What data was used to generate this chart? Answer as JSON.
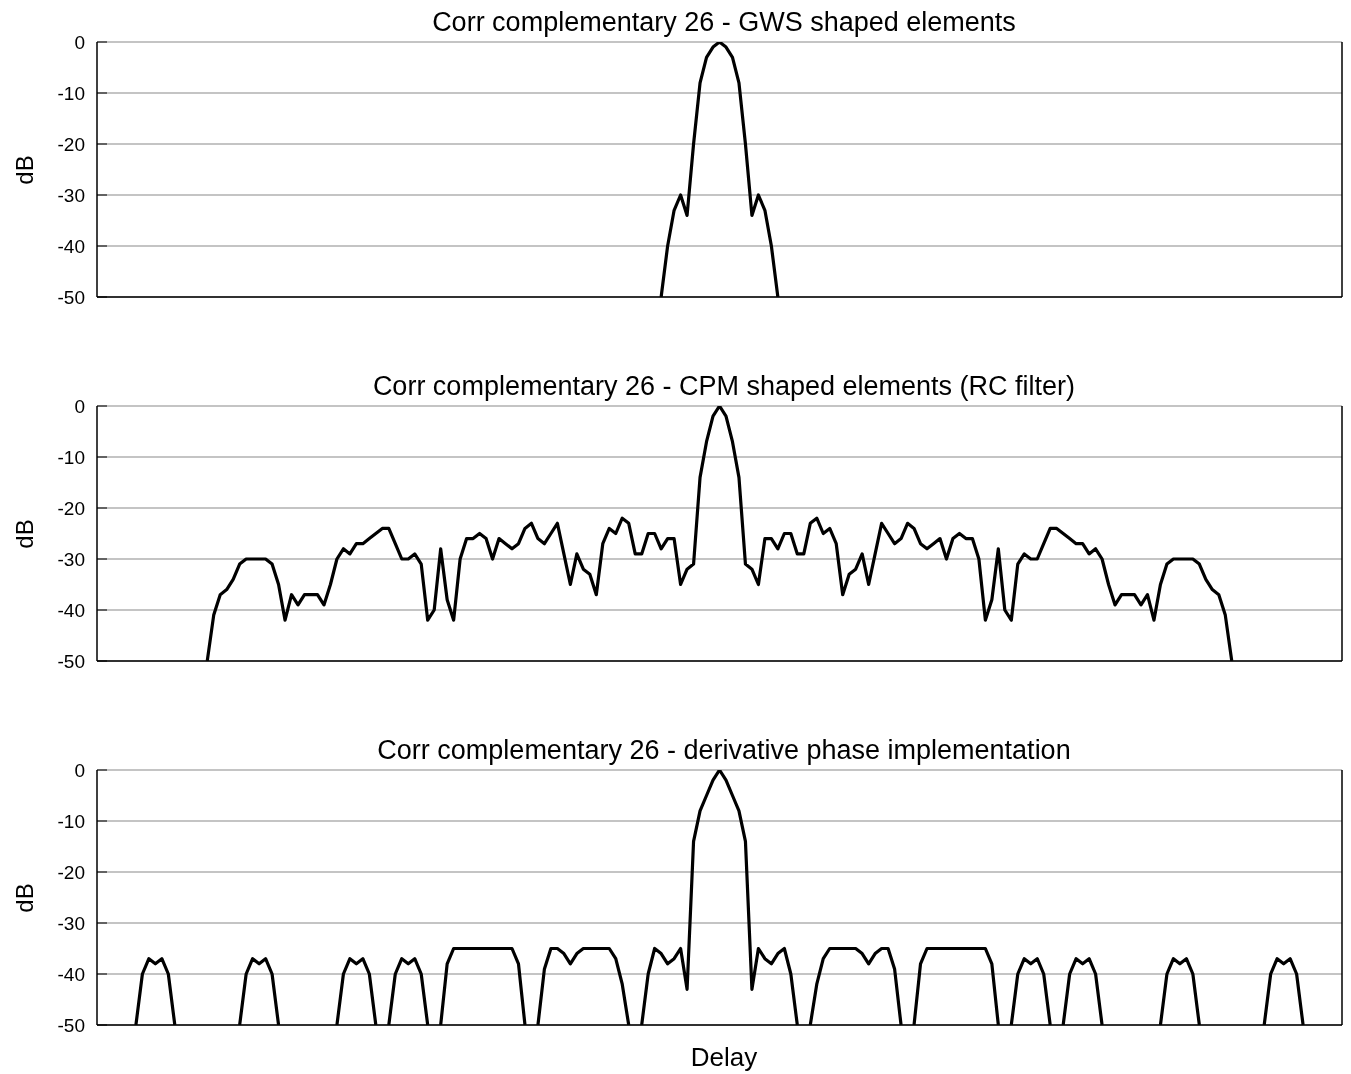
{
  "chart_data": [
    {
      "type": "line",
      "title": "Corr complementary 26 - GWS shaped elements",
      "ylabel": "dB",
      "color": "#000000",
      "ylim": [
        -50,
        0
      ],
      "yticks": [
        -50,
        -40,
        -30,
        -20,
        -10,
        0
      ],
      "grid": "y",
      "tick_labels": "y",
      "marker": "none",
      "line_style": "solid",
      "categories": [
        null,
        null,
        null,
        null,
        null,
        null,
        null,
        null,
        null,
        null,
        null,
        null,
        null,
        null,
        null,
        null,
        null,
        null,
        null,
        null,
        null,
        null,
        null,
        null,
        null,
        null,
        null,
        null,
        null,
        null,
        null,
        null,
        null,
        null,
        null,
        null,
        null,
        null,
        null,
        null,
        null,
        null,
        null,
        null,
        null,
        null,
        null,
        null,
        null,
        null,
        null,
        null,
        null,
        null,
        null,
        null,
        null,
        null,
        null,
        null,
        null,
        null,
        null,
        null,
        null,
        null,
        null,
        null,
        null,
        null,
        null,
        null,
        null,
        null,
        null,
        null,
        null,
        null,
        null,
        null,
        null,
        null,
        null,
        null,
        null,
        null,
        null,
        null,
        null,
        null,
        null,
        null,
        null,
        null,
        null,
        null,
        null,
        null,
        null,
        null,
        null,
        null,
        null,
        null,
        null,
        null,
        null,
        null,
        null,
        null,
        null,
        null,
        null,
        null,
        null,
        null,
        null,
        null,
        null,
        null,
        null,
        null,
        null,
        null,
        null,
        null,
        null,
        null,
        null,
        null,
        null,
        null,
        null,
        null,
        null,
        null,
        null,
        null,
        null,
        null,
        null,
        null,
        null,
        null,
        null,
        null,
        null,
        null,
        null,
        null,
        null,
        null,
        null,
        null,
        null,
        null,
        null,
        null,
        null,
        null,
        null,
        null,
        null,
        null,
        null,
        null,
        null,
        null,
        null,
        null,
        null,
        null,
        null,
        null,
        null,
        null,
        null,
        null,
        null,
        null,
        null,
        null,
        null,
        null,
        null,
        null,
        null,
        null,
        null,
        null,
        null,
        null,
        null
      ],
      "values": [
        null,
        null,
        null,
        null,
        null,
        null,
        null,
        null,
        null,
        null,
        null,
        null,
        null,
        null,
        null,
        null,
        null,
        null,
        null,
        null,
        null,
        null,
        null,
        null,
        null,
        null,
        null,
        null,
        null,
        null,
        null,
        null,
        null,
        null,
        null,
        null,
        null,
        null,
        null,
        null,
        null,
        null,
        null,
        null,
        null,
        null,
        null,
        null,
        null,
        null,
        null,
        null,
        null,
        null,
        null,
        null,
        null,
        null,
        null,
        null,
        null,
        null,
        null,
        null,
        null,
        null,
        null,
        null,
        null,
        null,
        null,
        null,
        null,
        null,
        null,
        null,
        null,
        null,
        null,
        null,
        null,
        null,
        null,
        null,
        null,
        null,
        null,
        -50,
        -40,
        -33,
        -30,
        -34,
        -20,
        -8,
        -3,
        -1,
        0,
        -1,
        -3,
        -8,
        -20,
        -34,
        -30,
        -33,
        -40,
        -50,
        null,
        null,
        null,
        null,
        null,
        null,
        null,
        null,
        null,
        null,
        null,
        null,
        null,
        null,
        null,
        null,
        null,
        null,
        null,
        null,
        null,
        null,
        null,
        null,
        null,
        null,
        null,
        null,
        null,
        null,
        null,
        null,
        null,
        null,
        null,
        null,
        null,
        null,
        null,
        null,
        null,
        null,
        null,
        null,
        null,
        null,
        null,
        null,
        null,
        null,
        null,
        null,
        null,
        null,
        null,
        null,
        null,
        null,
        null,
        null,
        null,
        null,
        null,
        null,
        null,
        null,
        null,
        null,
        null,
        null,
        null,
        null,
        null,
        null,
        null,
        null,
        null,
        null,
        null,
        null,
        null,
        null,
        null,
        null,
        null,
        null,
        null
      ]
    },
    {
      "type": "line",
      "title": "Corr complementary 26 - CPM shaped elements (RC filter)",
      "ylabel": "dB",
      "color": "#000000",
      "ylim": [
        -50,
        0
      ],
      "yticks": [
        -50,
        -40,
        -30,
        -20,
        -10,
        0
      ],
      "grid": "y",
      "tick_labels": "y",
      "marker": "none",
      "line_style": "solid",
      "categories": [
        null,
        null,
        null,
        null,
        null,
        null,
        null,
        null,
        null,
        null,
        null,
        null,
        null,
        null,
        null,
        null,
        null,
        null,
        null,
        null,
        null,
        null,
        null,
        null,
        null,
        null,
        null,
        null,
        null,
        null,
        null,
        null,
        null,
        null,
        null,
        null,
        null,
        null,
        null,
        null,
        null,
        null,
        null,
        null,
        null,
        null,
        null,
        null,
        null,
        null,
        null,
        null,
        null,
        null,
        null,
        null,
        null,
        null,
        null,
        null,
        null,
        null,
        null,
        null,
        null,
        null,
        null,
        null,
        null,
        null,
        null,
        null,
        null,
        null,
        null,
        null,
        null,
        null,
        null,
        null,
        null,
        null,
        null,
        null,
        null,
        null,
        null,
        null,
        null,
        null,
        null,
        null,
        null,
        null,
        null,
        null,
        null,
        null,
        null,
        null,
        null,
        null,
        null,
        null,
        null,
        null,
        null,
        null,
        null,
        null,
        null,
        null,
        null,
        null,
        null,
        null,
        null,
        null,
        null,
        null,
        null,
        null,
        null,
        null,
        null,
        null,
        null,
        null,
        null,
        null,
        null,
        null,
        null,
        null,
        null,
        null,
        null,
        null,
        null,
        null,
        null,
        null,
        null,
        null,
        null,
        null,
        null,
        null,
        null,
        null,
        null,
        null,
        null,
        null,
        null,
        null,
        null,
        null,
        null,
        null,
        null,
        null,
        null,
        null,
        null,
        null,
        null,
        null,
        null,
        null,
        null,
        null,
        null,
        null,
        null,
        null,
        null,
        null,
        null,
        null,
        null,
        null,
        null,
        null,
        null,
        null,
        null,
        null,
        null,
        null,
        null,
        null,
        null
      ],
      "values": [
        null,
        null,
        null,
        null,
        null,
        null,
        null,
        null,
        null,
        null,
        null,
        null,
        null,
        null,
        null,
        null,
        null,
        -50,
        -41,
        -37,
        -36,
        -34,
        -31,
        -30,
        -30,
        -30,
        -30,
        -31,
        -35,
        -42,
        -37,
        -39,
        -37,
        -37,
        -37,
        -39,
        -35,
        -30,
        -28,
        -29,
        -27,
        -27,
        -26,
        -25,
        -24,
        -24,
        -27,
        -30,
        -30,
        -29,
        -31,
        -42,
        -40,
        -28,
        -38,
        -42,
        -30,
        -26,
        -26,
        -25,
        -26,
        -30,
        -26,
        -27,
        -28,
        -27,
        -24,
        -23,
        -26,
        -27,
        -25,
        -23,
        -29,
        -35,
        -29,
        -32,
        -33,
        -37,
        -27,
        -24,
        -25,
        -22,
        -23,
        -29,
        -29,
        -25,
        -25,
        -28,
        -26,
        -26,
        -35,
        -32,
        -31,
        -14,
        -7,
        -2,
        0,
        -2,
        -7,
        -14,
        -31,
        -32,
        -35,
        -26,
        -26,
        -28,
        -25,
        -25,
        -29,
        -29,
        -23,
        -22,
        -25,
        -24,
        -27,
        -37,
        -33,
        -32,
        -29,
        -35,
        -29,
        -23,
        -25,
        -27,
        -26,
        -23,
        -24,
        -27,
        -28,
        -27,
        -26,
        -30,
        -26,
        -25,
        -26,
        -26,
        -30,
        -42,
        -38,
        -28,
        -40,
        -42,
        -31,
        -29,
        -30,
        -30,
        -27,
        -24,
        -24,
        -25,
        -26,
        -27,
        -27,
        -29,
        -28,
        -30,
        -35,
        -39,
        -37,
        -37,
        -37,
        -39,
        -37,
        -42,
        -35,
        -31,
        -30,
        -30,
        -30,
        -30,
        -31,
        -34,
        -36,
        -37,
        -41,
        -50,
        null,
        null,
        null,
        null,
        null,
        null,
        null,
        null,
        null,
        null,
        null,
        null,
        null,
        null,
        null,
        null,
        null
      ]
    },
    {
      "type": "line",
      "title": "Corr complementary 26 - derivative phase implementation",
      "ylabel": "dB",
      "xlabel": "Delay",
      "color": "#000000",
      "ylim": [
        -50,
        0
      ],
      "yticks": [
        -50,
        -40,
        -30,
        -20,
        -10,
        0
      ],
      "grid": "y",
      "tick_labels": "y",
      "marker": "none",
      "line_style": "solid",
      "categories": [
        null,
        null,
        null,
        null,
        null,
        null,
        null,
        null,
        null,
        null,
        null,
        null,
        null,
        null,
        null,
        null,
        null,
        null,
        null,
        null,
        null,
        null,
        null,
        null,
        null,
        null,
        null,
        null,
        null,
        null,
        null,
        null,
        null,
        null,
        null,
        null,
        null,
        null,
        null,
        null,
        null,
        null,
        null,
        null,
        null,
        null,
        null,
        null,
        null,
        null,
        null,
        null,
        null,
        null,
        null,
        null,
        null,
        null,
        null,
        null,
        null,
        null,
        null,
        null,
        null,
        null,
        null,
        null,
        null,
        null,
        null,
        null,
        null,
        null,
        null,
        null,
        null,
        null,
        null,
        null,
        null,
        null,
        null,
        null,
        null,
        null,
        null,
        null,
        null,
        null,
        null,
        null,
        null,
        null,
        null,
        null,
        null,
        null,
        null,
        null,
        null,
        null,
        null,
        null,
        null,
        null,
        null,
        null,
        null,
        null,
        null,
        null,
        null,
        null,
        null,
        null,
        null,
        null,
        null,
        null,
        null,
        null,
        null,
        null,
        null,
        null,
        null,
        null,
        null,
        null,
        null,
        null,
        null,
        null,
        null,
        null,
        null,
        null,
        null,
        null,
        null,
        null,
        null,
        null,
        null,
        null,
        null,
        null,
        null,
        null,
        null,
        null,
        null,
        null,
        null,
        null,
        null,
        null,
        null,
        null,
        null,
        null,
        null,
        null,
        null,
        null,
        null,
        null,
        null,
        null,
        null,
        null,
        null,
        null,
        null,
        null,
        null,
        null,
        null,
        null,
        null,
        null,
        null,
        null,
        null,
        null,
        null,
        null,
        null,
        null,
        null,
        null,
        null
      ],
      "values": [
        null,
        null,
        null,
        null,
        null,
        null,
        -50,
        -40,
        -37,
        -38,
        -37,
        -40,
        -50,
        null,
        null,
        null,
        null,
        null,
        null,
        null,
        null,
        null,
        -50,
        -40,
        -37,
        -38,
        -37,
        -40,
        -50,
        null,
        null,
        null,
        null,
        null,
        null,
        null,
        null,
        -50,
        -40,
        -37,
        -38,
        -37,
        -40,
        -50,
        null,
        -50,
        -40,
        -37,
        -38,
        -37,
        -40,
        -50,
        null,
        -50,
        -38,
        -35,
        -35,
        -35,
        -35,
        -35,
        -35,
        -35,
        -35,
        -35,
        -35,
        -38,
        -50,
        null,
        -50,
        -39,
        -35,
        -35,
        -36,
        -38,
        -36,
        -35,
        -35,
        -35,
        -35,
        -35,
        -37,
        -42,
        -50,
        null,
        -50,
        -40,
        -35,
        -36,
        -38,
        -37,
        -35,
        -43,
        -14,
        -8,
        -5,
        -2,
        0,
        -2,
        -5,
        -8,
        -14,
        -43,
        -35,
        -37,
        -38,
        -36,
        -35,
        -40,
        -50,
        null,
        -50,
        -42,
        -37,
        -35,
        -35,
        -35,
        -35,
        -35,
        -36,
        -38,
        -36,
        -35,
        -35,
        -39,
        -50,
        null,
        -50,
        -38,
        -35,
        -35,
        -35,
        -35,
        -35,
        -35,
        -35,
        -35,
        -35,
        -35,
        -38,
        -50,
        null,
        -50,
        -40,
        -37,
        -38,
        -37,
        -40,
        -50,
        null,
        -50,
        -40,
        -37,
        -38,
        -37,
        -40,
        -50,
        null,
        null,
        null,
        null,
        null,
        null,
        null,
        null,
        -50,
        -40,
        -37,
        -38,
        -37,
        -40,
        -50,
        null,
        null,
        null,
        null,
        null,
        null,
        null,
        null,
        null,
        -50,
        -40,
        -37,
        -38,
        -37,
        -40,
        -50,
        null,
        null,
        null,
        null,
        null,
        null
      ]
    }
  ]
}
